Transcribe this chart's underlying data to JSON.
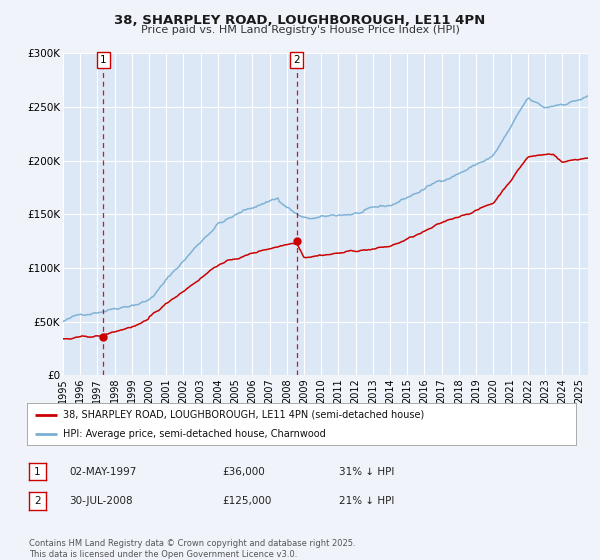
{
  "title": "38, SHARPLEY ROAD, LOUGHBOROUGH, LE11 4PN",
  "subtitle": "Price paid vs. HM Land Registry's House Price Index (HPI)",
  "bg_color": "#f0f4fa",
  "plot_bg_color": "#dce8f5",
  "grid_color": "#ffffff",
  "red_line_color": "#cc0000",
  "blue_line_color": "#7aafd4",
  "x_start": 1995.0,
  "x_end": 2025.5,
  "y_min": 0,
  "y_max": 300000,
  "y_ticks": [
    0,
    50000,
    100000,
    150000,
    200000,
    250000,
    300000
  ],
  "y_tick_labels": [
    "£0",
    "£50K",
    "£100K",
    "£150K",
    "£200K",
    "£250K",
    "£300K"
  ],
  "sale1_x": 1997.33,
  "sale1_y": 36000,
  "sale1_label": "1",
  "sale1_date": "02-MAY-1997",
  "sale1_price": "£36,000",
  "sale1_hpi": "31% ↓ HPI",
  "sale2_x": 2008.58,
  "sale2_y": 125000,
  "sale2_label": "2",
  "sale2_date": "30-JUL-2008",
  "sale2_price": "£125,000",
  "sale2_hpi": "21% ↓ HPI",
  "legend_line1": "38, SHARPLEY ROAD, LOUGHBOROUGH, LE11 4PN (semi-detached house)",
  "legend_line2": "HPI: Average price, semi-detached house, Charnwood",
  "footer": "Contains HM Land Registry data © Crown copyright and database right 2025.\nThis data is licensed under the Open Government Licence v3.0.",
  "x_tick_years": [
    1995,
    1996,
    1997,
    1998,
    1999,
    2000,
    2001,
    2002,
    2003,
    2004,
    2005,
    2006,
    2007,
    2008,
    2009,
    2010,
    2011,
    2012,
    2013,
    2014,
    2015,
    2016,
    2017,
    2018,
    2019,
    2020,
    2021,
    2022,
    2023,
    2024,
    2025
  ]
}
